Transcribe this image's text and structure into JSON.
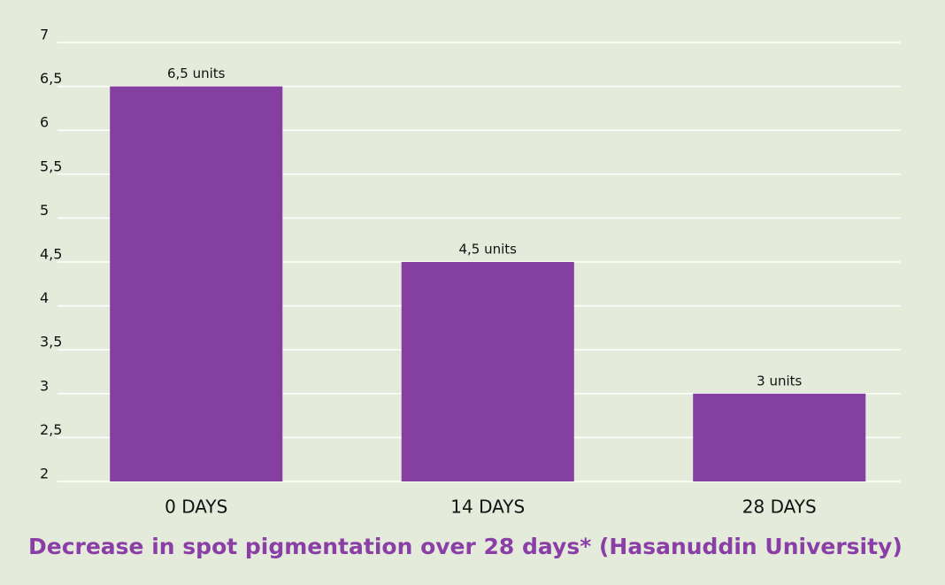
{
  "chart_data": {
    "type": "bar",
    "title": "Decrease in spot pigmentation over 28 days* (Hasanuddin University)",
    "categories": [
      "0 DAYS",
      "14 DAYS",
      "28 DAYS"
    ],
    "values": [
      6.5,
      4.5,
      3
    ],
    "value_labels": [
      "6,5 units",
      "4,5 units",
      "3 units"
    ],
    "color": "#853fa0",
    "ylim": [
      2,
      7
    ],
    "yticks": [
      2,
      {
        "value": 2.5,
        "label": "2,5"
      },
      3,
      {
        "value": 3.5,
        "label": "3,5"
      },
      4,
      {
        "value": 4.5,
        "label": "4,5"
      },
      5,
      {
        "value": 5.5,
        "label": "5,5"
      },
      6,
      {
        "value": 6.5,
        "label": "6,5"
      },
      7
    ],
    "grid": true
  }
}
